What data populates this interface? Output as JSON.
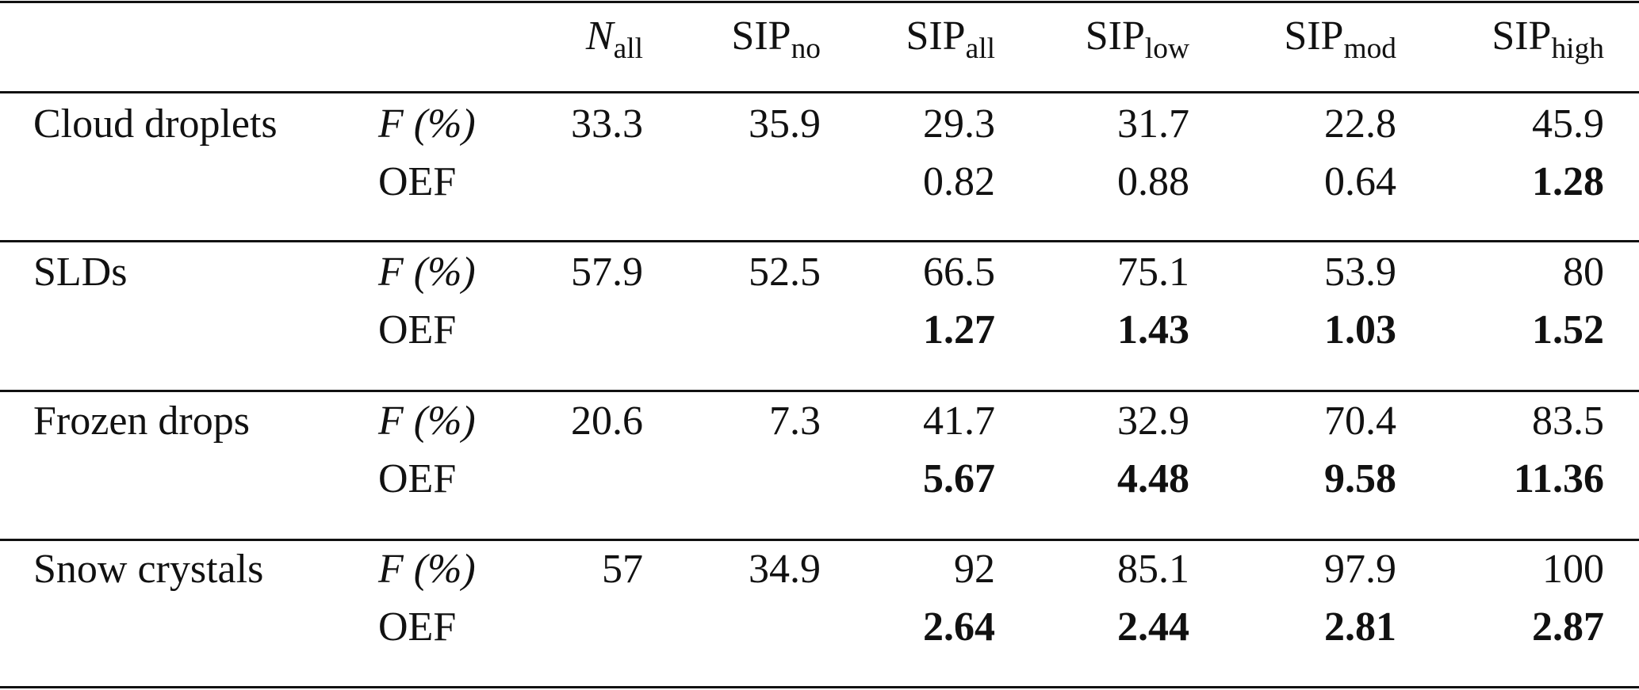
{
  "table": {
    "columns": [
      {
        "text": "N",
        "sub": "all",
        "italic": true
      },
      {
        "text": "SIP",
        "sub": "no"
      },
      {
        "text": "SIP",
        "sub": "all"
      },
      {
        "text": "SIP",
        "sub": "low"
      },
      {
        "text": "SIP",
        "sub": "mod"
      },
      {
        "text": "SIP",
        "sub": "high"
      }
    ],
    "groups": [
      {
        "label": "Cloud droplets",
        "rows": [
          {
            "label": "F (%)",
            "italic": true,
            "values": [
              "33.3",
              "35.9",
              "29.3",
              "31.7",
              "22.8",
              "45.9"
            ]
          },
          {
            "label": "OEF",
            "values": [
              null,
              null,
              "0.82",
              "0.88",
              "0.64",
              "1.28"
            ],
            "bold": [
              false,
              false,
              false,
              false,
              false,
              true
            ]
          }
        ]
      },
      {
        "label": "SLDs",
        "rows": [
          {
            "label": "F (%)",
            "italic": true,
            "values": [
              "57.9",
              "52.5",
              "66.5",
              "75.1",
              "53.9",
              "80"
            ]
          },
          {
            "label": "OEF",
            "values": [
              null,
              null,
              "1.27",
              "1.43",
              "1.03",
              "1.52"
            ],
            "bold": [
              false,
              false,
              true,
              true,
              true,
              true
            ]
          }
        ]
      },
      {
        "label": "Frozen drops",
        "rows": [
          {
            "label": "F (%)",
            "italic": true,
            "values": [
              "20.6",
              "7.3",
              "41.7",
              "32.9",
              "70.4",
              "83.5"
            ]
          },
          {
            "label": "OEF",
            "values": [
              null,
              null,
              "5.67",
              "4.48",
              "9.58",
              "11.36"
            ],
            "bold": [
              false,
              false,
              true,
              true,
              true,
              true
            ]
          }
        ]
      },
      {
        "label": "Snow crystals",
        "rows": [
          {
            "label": "F (%)",
            "italic": true,
            "values": [
              "57",
              "34.9",
              "92",
              "85.1",
              "97.9",
              "100"
            ]
          },
          {
            "label": "OEF",
            "values": [
              null,
              null,
              "2.64",
              "2.44",
              "2.81",
              "2.87"
            ],
            "bold": [
              false,
              false,
              true,
              true,
              true,
              true
            ]
          }
        ]
      }
    ]
  }
}
